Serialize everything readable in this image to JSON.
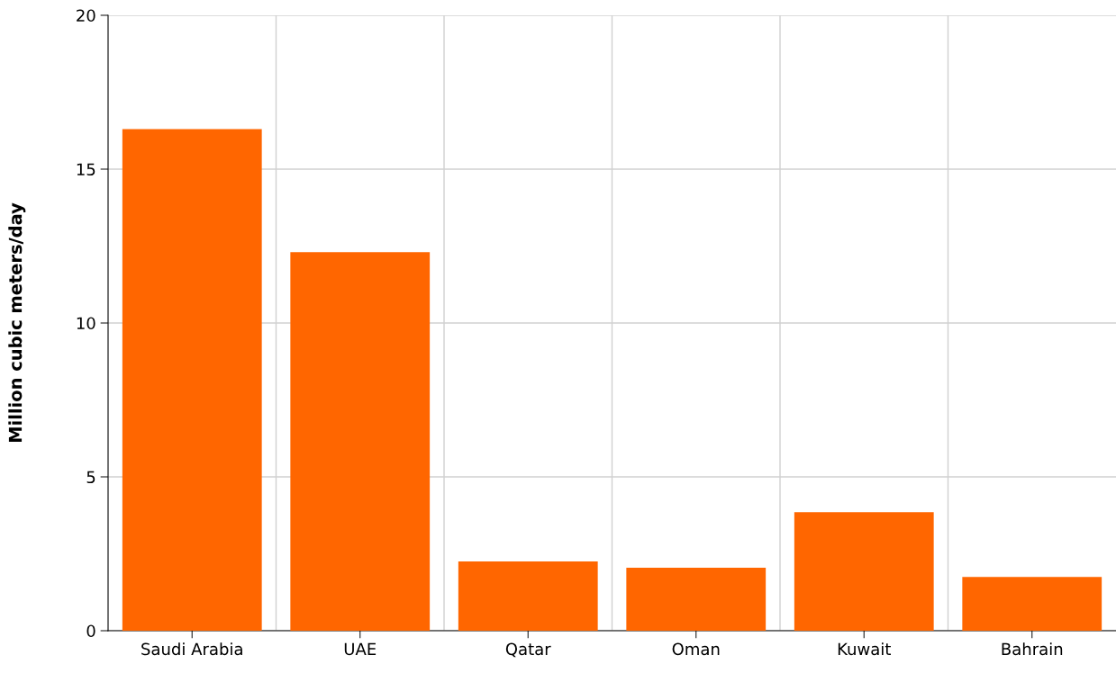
{
  "chart_data": {
    "type": "bar",
    "ylabel": "Million cubic meters/day",
    "categories": [
      "Saudi Arabia",
      "UAE",
      "Qatar",
      "Oman",
      "Kuwait",
      "Bahrain"
    ],
    "values": [
      16.3,
      12.3,
      2.25,
      2.05,
      3.85,
      1.75
    ],
    "color": "#ff6600",
    "ylim": [
      0,
      20
    ],
    "yticks": [
      0,
      5,
      10,
      15,
      20
    ],
    "grid": true
  }
}
